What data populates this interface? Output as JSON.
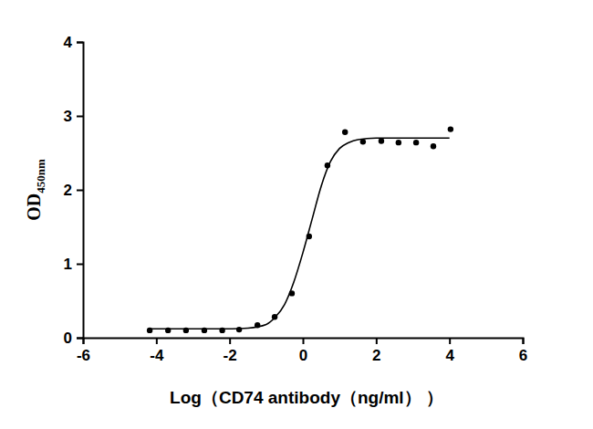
{
  "chart_data": {
    "type": "scatter",
    "x_label": "Log（CD74 antibody（ng/ml） ）",
    "y_label": "OD450nm",
    "xlim": [
      -6,
      6
    ],
    "xticks": [
      -6,
      -4,
      -2,
      0,
      2,
      4,
      6
    ],
    "ylim": [
      0,
      4
    ],
    "yticks": [
      0,
      1,
      2,
      3,
      4
    ],
    "grid": false,
    "series": [
      {
        "type": "scatter",
        "color": "#000000",
        "marker": "circle",
        "x": [
          -4.18,
          -3.68,
          -3.19,
          -2.69,
          -2.2,
          -1.74,
          -1.24,
          -0.77,
          -0.3,
          0.17,
          0.67,
          1.15,
          1.64,
          2.14,
          2.61,
          3.09,
          3.56,
          4.03
        ],
        "values": [
          0.1,
          0.1,
          0.1,
          0.1,
          0.1,
          0.11,
          0.17,
          0.28,
          0.6,
          1.37,
          2.33,
          2.78,
          2.65,
          2.66,
          2.64,
          2.64,
          2.59,
          2.82
        ]
      },
      {
        "type": "line",
        "color": "#000000",
        "line_style": "solid",
        "x": [
          -4.2,
          -3,
          -2,
          -1.5,
          -1,
          -0.75,
          -0.5,
          -0.25,
          0,
          0.25,
          0.5,
          0.75,
          1,
          1.25,
          1.5,
          2,
          3,
          4
        ],
        "values": [
          0.12,
          0.12,
          0.12,
          0.13,
          0.18,
          0.28,
          0.45,
          0.75,
          1.15,
          1.6,
          2.05,
          2.38,
          2.56,
          2.64,
          2.68,
          2.7,
          2.7,
          2.7
        ]
      }
    ]
  }
}
